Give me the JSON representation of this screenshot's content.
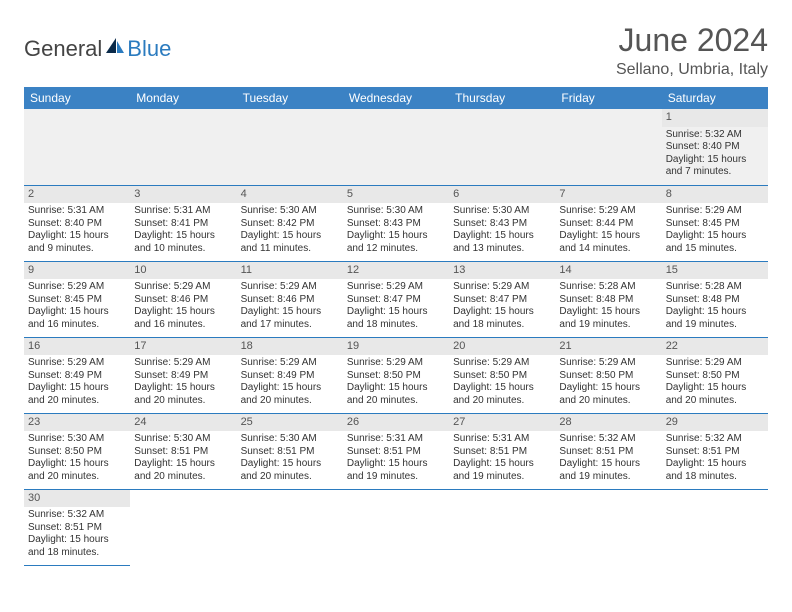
{
  "logo": {
    "text_general": "General",
    "text_blue": "Blue"
  },
  "month_title": "June 2024",
  "location": "Sellano, Umbria, Italy",
  "colors": {
    "header_bg": "#3b82c4",
    "header_text": "#ffffff",
    "cell_border": "#2b7bbf",
    "daynum_bg": "#e8e8e8",
    "empty_bg": "#f0f0f0",
    "logo_blue": "#2b7bbf",
    "text": "#333333"
  },
  "day_headers": [
    "Sunday",
    "Monday",
    "Tuesday",
    "Wednesday",
    "Thursday",
    "Friday",
    "Saturday"
  ],
  "weeks": [
    [
      null,
      null,
      null,
      null,
      null,
      null,
      {
        "n": "1",
        "sunrise": "Sunrise: 5:32 AM",
        "sunset": "Sunset: 8:40 PM",
        "daylight": "Daylight: 15 hours and 7 minutes."
      }
    ],
    [
      {
        "n": "2",
        "sunrise": "Sunrise: 5:31 AM",
        "sunset": "Sunset: 8:40 PM",
        "daylight": "Daylight: 15 hours and 9 minutes."
      },
      {
        "n": "3",
        "sunrise": "Sunrise: 5:31 AM",
        "sunset": "Sunset: 8:41 PM",
        "daylight": "Daylight: 15 hours and 10 minutes."
      },
      {
        "n": "4",
        "sunrise": "Sunrise: 5:30 AM",
        "sunset": "Sunset: 8:42 PM",
        "daylight": "Daylight: 15 hours and 11 minutes."
      },
      {
        "n": "5",
        "sunrise": "Sunrise: 5:30 AM",
        "sunset": "Sunset: 8:43 PM",
        "daylight": "Daylight: 15 hours and 12 minutes."
      },
      {
        "n": "6",
        "sunrise": "Sunrise: 5:30 AM",
        "sunset": "Sunset: 8:43 PM",
        "daylight": "Daylight: 15 hours and 13 minutes."
      },
      {
        "n": "7",
        "sunrise": "Sunrise: 5:29 AM",
        "sunset": "Sunset: 8:44 PM",
        "daylight": "Daylight: 15 hours and 14 minutes."
      },
      {
        "n": "8",
        "sunrise": "Sunrise: 5:29 AM",
        "sunset": "Sunset: 8:45 PM",
        "daylight": "Daylight: 15 hours and 15 minutes."
      }
    ],
    [
      {
        "n": "9",
        "sunrise": "Sunrise: 5:29 AM",
        "sunset": "Sunset: 8:45 PM",
        "daylight": "Daylight: 15 hours and 16 minutes."
      },
      {
        "n": "10",
        "sunrise": "Sunrise: 5:29 AM",
        "sunset": "Sunset: 8:46 PM",
        "daylight": "Daylight: 15 hours and 16 minutes."
      },
      {
        "n": "11",
        "sunrise": "Sunrise: 5:29 AM",
        "sunset": "Sunset: 8:46 PM",
        "daylight": "Daylight: 15 hours and 17 minutes."
      },
      {
        "n": "12",
        "sunrise": "Sunrise: 5:29 AM",
        "sunset": "Sunset: 8:47 PM",
        "daylight": "Daylight: 15 hours and 18 minutes."
      },
      {
        "n": "13",
        "sunrise": "Sunrise: 5:29 AM",
        "sunset": "Sunset: 8:47 PM",
        "daylight": "Daylight: 15 hours and 18 minutes."
      },
      {
        "n": "14",
        "sunrise": "Sunrise: 5:28 AM",
        "sunset": "Sunset: 8:48 PM",
        "daylight": "Daylight: 15 hours and 19 minutes."
      },
      {
        "n": "15",
        "sunrise": "Sunrise: 5:28 AM",
        "sunset": "Sunset: 8:48 PM",
        "daylight": "Daylight: 15 hours and 19 minutes."
      }
    ],
    [
      {
        "n": "16",
        "sunrise": "Sunrise: 5:29 AM",
        "sunset": "Sunset: 8:49 PM",
        "daylight": "Daylight: 15 hours and 20 minutes."
      },
      {
        "n": "17",
        "sunrise": "Sunrise: 5:29 AM",
        "sunset": "Sunset: 8:49 PM",
        "daylight": "Daylight: 15 hours and 20 minutes."
      },
      {
        "n": "18",
        "sunrise": "Sunrise: 5:29 AM",
        "sunset": "Sunset: 8:49 PM",
        "daylight": "Daylight: 15 hours and 20 minutes."
      },
      {
        "n": "19",
        "sunrise": "Sunrise: 5:29 AM",
        "sunset": "Sunset: 8:50 PM",
        "daylight": "Daylight: 15 hours and 20 minutes."
      },
      {
        "n": "20",
        "sunrise": "Sunrise: 5:29 AM",
        "sunset": "Sunset: 8:50 PM",
        "daylight": "Daylight: 15 hours and 20 minutes."
      },
      {
        "n": "21",
        "sunrise": "Sunrise: 5:29 AM",
        "sunset": "Sunset: 8:50 PM",
        "daylight": "Daylight: 15 hours and 20 minutes."
      },
      {
        "n": "22",
        "sunrise": "Sunrise: 5:29 AM",
        "sunset": "Sunset: 8:50 PM",
        "daylight": "Daylight: 15 hours and 20 minutes."
      }
    ],
    [
      {
        "n": "23",
        "sunrise": "Sunrise: 5:30 AM",
        "sunset": "Sunset: 8:50 PM",
        "daylight": "Daylight: 15 hours and 20 minutes."
      },
      {
        "n": "24",
        "sunrise": "Sunrise: 5:30 AM",
        "sunset": "Sunset: 8:51 PM",
        "daylight": "Daylight: 15 hours and 20 minutes."
      },
      {
        "n": "25",
        "sunrise": "Sunrise: 5:30 AM",
        "sunset": "Sunset: 8:51 PM",
        "daylight": "Daylight: 15 hours and 20 minutes."
      },
      {
        "n": "26",
        "sunrise": "Sunrise: 5:31 AM",
        "sunset": "Sunset: 8:51 PM",
        "daylight": "Daylight: 15 hours and 19 minutes."
      },
      {
        "n": "27",
        "sunrise": "Sunrise: 5:31 AM",
        "sunset": "Sunset: 8:51 PM",
        "daylight": "Daylight: 15 hours and 19 minutes."
      },
      {
        "n": "28",
        "sunrise": "Sunrise: 5:32 AM",
        "sunset": "Sunset: 8:51 PM",
        "daylight": "Daylight: 15 hours and 19 minutes."
      },
      {
        "n": "29",
        "sunrise": "Sunrise: 5:32 AM",
        "sunset": "Sunset: 8:51 PM",
        "daylight": "Daylight: 15 hours and 18 minutes."
      }
    ],
    [
      {
        "n": "30",
        "sunrise": "Sunrise: 5:32 AM",
        "sunset": "Sunset: 8:51 PM",
        "daylight": "Daylight: 15 hours and 18 minutes."
      },
      null,
      null,
      null,
      null,
      null,
      null
    ]
  ]
}
